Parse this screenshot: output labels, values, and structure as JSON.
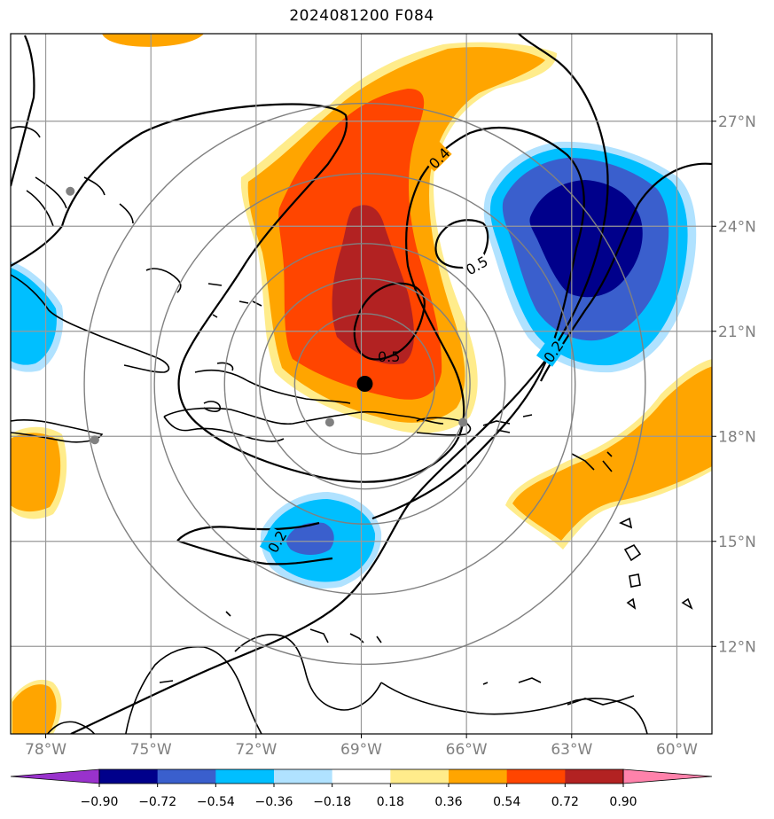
{
  "title": "2024081200 F084",
  "chart_data": {
    "type": "map",
    "title": "2024081200 F084",
    "lon_range": [
      -79.0,
      -59.0
    ],
    "lat_range": [
      9.5,
      29.5
    ],
    "lon_ticks": [
      {
        "value": -78,
        "label": "78°W"
      },
      {
        "value": -75,
        "label": "75°W"
      },
      {
        "value": -72,
        "label": "72°W"
      },
      {
        "value": -69,
        "label": "69°W"
      },
      {
        "value": -66,
        "label": "66°W"
      },
      {
        "value": -63,
        "label": "63°W"
      },
      {
        "value": -60,
        "label": "60°W"
      }
    ],
    "lat_ticks": [
      {
        "value": 27,
        "label": "27°N"
      },
      {
        "value": 24,
        "label": "24°N"
      },
      {
        "value": 21,
        "label": "21°N"
      },
      {
        "value": 18,
        "label": "18°N"
      },
      {
        "value": 15,
        "label": "15°N"
      },
      {
        "value": 12,
        "label": "12°N"
      }
    ],
    "grid": true,
    "center": {
      "lon": -68.9,
      "lat": 19.5
    },
    "range_rings_deg": [
      2,
      3,
      4,
      6,
      8
    ],
    "reference_points": [
      {
        "lon": -77.3,
        "lat": 25.0
      },
      {
        "lon": -76.6,
        "lat": 17.9
      },
      {
        "lon": -69.9,
        "lat": 18.4
      },
      {
        "lon": -66.1,
        "lat": 18.4
      }
    ],
    "colorbar": {
      "orientation": "horizontal",
      "extend": "both",
      "ticks": [
        -0.9,
        -0.72,
        -0.54,
        -0.36,
        -0.18,
        0.18,
        0.36,
        0.54,
        0.72,
        0.9
      ],
      "tick_labels": [
        "−0.90",
        "−0.72",
        "−0.54",
        "−0.36",
        "−0.18",
        "0.18",
        "0.36",
        "0.54",
        "0.72",
        "0.90"
      ],
      "colors": [
        "#9932cc",
        "#00008b",
        "#3a5fcd",
        "#00bfff",
        "#b0e2ff",
        "#ffffff",
        "#ffec8b",
        "#ffa500",
        "#ff4500",
        "#b22222",
        "#ff82ab"
      ]
    },
    "contour_labels": [
      "0.4",
      "0.5",
      "0.5",
      "0.2",
      "0.2"
    ]
  }
}
